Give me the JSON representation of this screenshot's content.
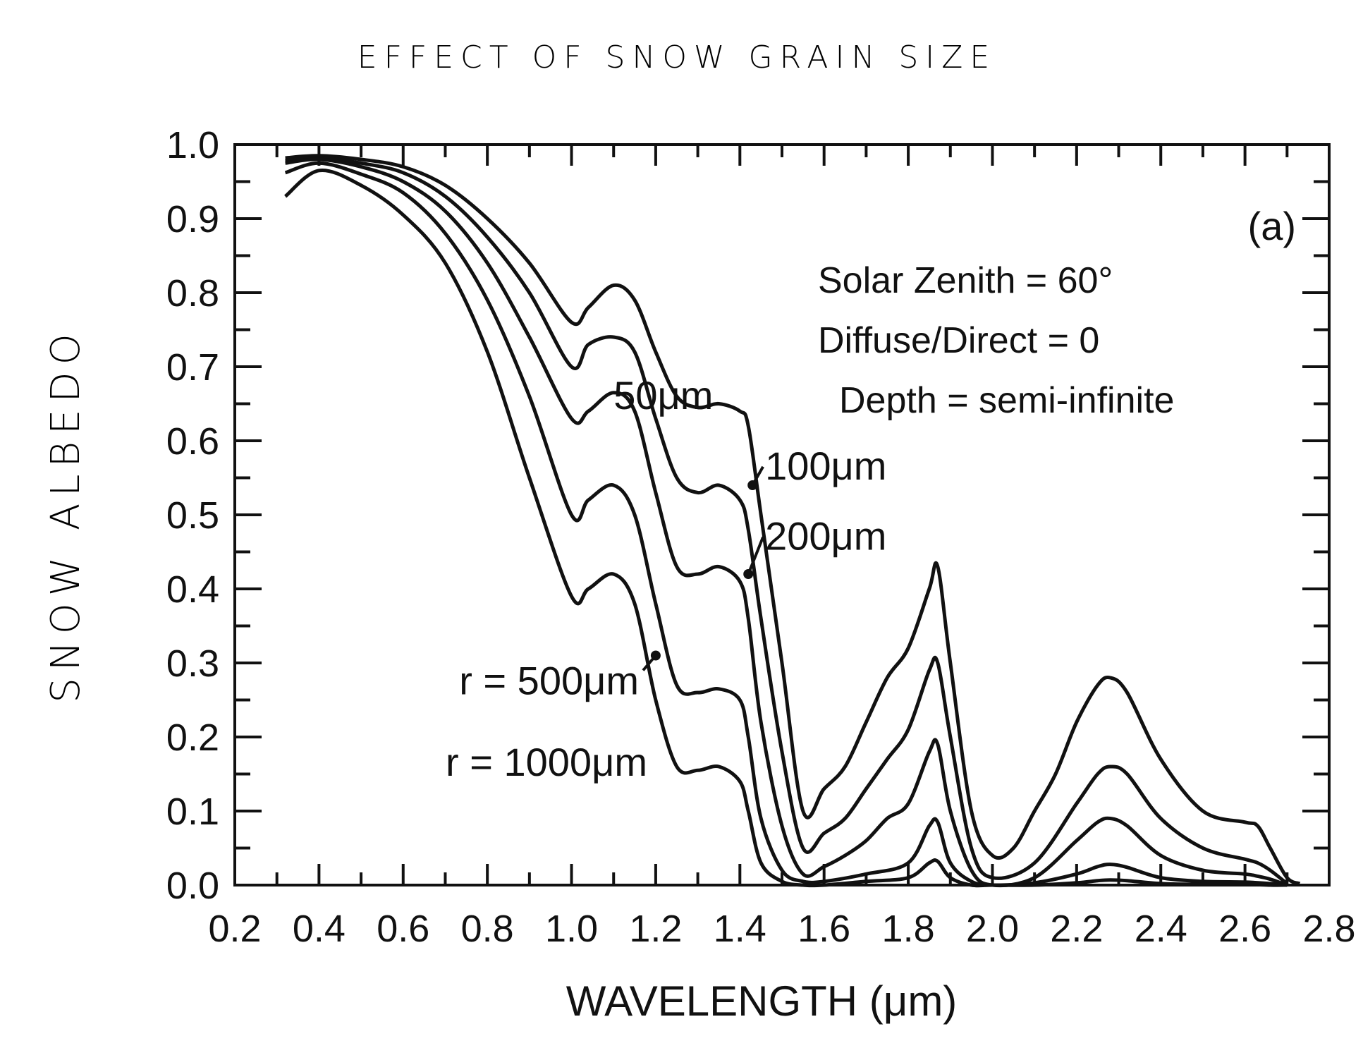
{
  "chart_data": {
    "type": "line",
    "title": "EFFECT OF SNOW GRAIN SIZE",
    "xlabel": "WAVELENGTH (μm)",
    "ylabel": "SNOW ALBEDO",
    "panel_label": "(a)",
    "xlim": [
      0.2,
      2.8
    ],
    "ylim": [
      0.0,
      1.0
    ],
    "x_ticks": [
      "0.2",
      "0.4",
      "0.6",
      "0.8",
      "1.0",
      "1.2",
      "1.4",
      "1.6",
      "1.8",
      "2.0",
      "2.2",
      "2.4",
      "2.6",
      "2.8"
    ],
    "y_ticks": [
      "0.0",
      "0.1",
      "0.2",
      "0.3",
      "0.4",
      "0.5",
      "0.6",
      "0.7",
      "0.8",
      "0.9",
      "1.0"
    ],
    "annotations": [
      "Solar Zenith = 60°",
      "Diffuse/Direct = 0",
      "Depth = semi-infinite"
    ],
    "grid": false,
    "series": [
      {
        "name": "50μm",
        "x": [
          0.32,
          0.4,
          0.5,
          0.6,
          0.7,
          0.8,
          0.9,
          1.0,
          1.04,
          1.1,
          1.15,
          1.2,
          1.25,
          1.3,
          1.35,
          1.4,
          1.42,
          1.45,
          1.5,
          1.55,
          1.6,
          1.65,
          1.7,
          1.75,
          1.8,
          1.85,
          1.87,
          1.9,
          1.95,
          2.0,
          2.05,
          2.1,
          2.15,
          2.2,
          2.25,
          2.28,
          2.32,
          2.4,
          2.5,
          2.6,
          2.63,
          2.66,
          2.7,
          2.73
        ],
        "y": [
          0.982,
          0.985,
          0.98,
          0.97,
          0.945,
          0.9,
          0.84,
          0.76,
          0.78,
          0.81,
          0.79,
          0.72,
          0.66,
          0.645,
          0.65,
          0.64,
          0.62,
          0.5,
          0.3,
          0.1,
          0.13,
          0.16,
          0.22,
          0.28,
          0.32,
          0.4,
          0.43,
          0.3,
          0.1,
          0.04,
          0.05,
          0.1,
          0.15,
          0.22,
          0.27,
          0.28,
          0.26,
          0.17,
          0.1,
          0.085,
          0.08,
          0.05,
          0.01,
          0.002
        ]
      },
      {
        "name": "100μm",
        "x": [
          0.32,
          0.4,
          0.5,
          0.6,
          0.7,
          0.8,
          0.9,
          1.0,
          1.04,
          1.1,
          1.15,
          1.2,
          1.25,
          1.3,
          1.35,
          1.4,
          1.42,
          1.45,
          1.5,
          1.55,
          1.6,
          1.65,
          1.7,
          1.75,
          1.8,
          1.85,
          1.87,
          1.9,
          1.95,
          2.0,
          2.1,
          2.2,
          2.25,
          2.28,
          2.32,
          2.4,
          2.5,
          2.6,
          2.63,
          2.66,
          2.7
        ],
        "y": [
          0.978,
          0.982,
          0.975,
          0.962,
          0.93,
          0.875,
          0.8,
          0.7,
          0.73,
          0.74,
          0.72,
          0.63,
          0.55,
          0.53,
          0.54,
          0.52,
          0.48,
          0.36,
          0.18,
          0.05,
          0.07,
          0.09,
          0.13,
          0.17,
          0.21,
          0.29,
          0.3,
          0.2,
          0.05,
          0.01,
          0.03,
          0.11,
          0.15,
          0.16,
          0.15,
          0.09,
          0.05,
          0.035,
          0.03,
          0.02,
          0.002
        ]
      },
      {
        "name": "200μm",
        "x": [
          0.32,
          0.4,
          0.5,
          0.6,
          0.7,
          0.8,
          0.9,
          1.0,
          1.04,
          1.1,
          1.15,
          1.2,
          1.25,
          1.3,
          1.35,
          1.4,
          1.42,
          1.45,
          1.5,
          1.55,
          1.6,
          1.65,
          1.7,
          1.75,
          1.8,
          1.85,
          1.87,
          1.9,
          1.95,
          2.0,
          2.1,
          2.2,
          2.25,
          2.28,
          2.32,
          2.4,
          2.5,
          2.6,
          2.63,
          2.66,
          2.7
        ],
        "y": [
          0.975,
          0.98,
          0.97,
          0.95,
          0.91,
          0.84,
          0.74,
          0.63,
          0.64,
          0.665,
          0.64,
          0.53,
          0.43,
          0.42,
          0.43,
          0.41,
          0.36,
          0.22,
          0.08,
          0.015,
          0.025,
          0.04,
          0.06,
          0.09,
          0.11,
          0.18,
          0.19,
          0.1,
          0.02,
          0.0,
          0.01,
          0.06,
          0.085,
          0.09,
          0.08,
          0.04,
          0.02,
          0.015,
          0.012,
          0.008,
          0.0
        ]
      },
      {
        "name": "r = 500μm",
        "x": [
          0.32,
          0.4,
          0.5,
          0.6,
          0.7,
          0.8,
          0.9,
          1.0,
          1.04,
          1.1,
          1.15,
          1.2,
          1.25,
          1.3,
          1.35,
          1.4,
          1.42,
          1.45,
          1.5,
          1.55,
          1.6,
          1.7,
          1.8,
          1.85,
          1.87,
          1.9,
          1.95,
          2.0,
          2.1,
          2.2,
          2.25,
          2.28,
          2.32,
          2.4,
          2.5,
          2.6,
          2.66,
          2.7
        ],
        "y": [
          0.962,
          0.975,
          0.96,
          0.935,
          0.88,
          0.79,
          0.66,
          0.5,
          0.52,
          0.54,
          0.5,
          0.38,
          0.27,
          0.26,
          0.265,
          0.25,
          0.2,
          0.09,
          0.02,
          0.005,
          0.005,
          0.015,
          0.03,
          0.08,
          0.085,
          0.03,
          0.005,
          0.0,
          0.003,
          0.015,
          0.025,
          0.028,
          0.024,
          0.01,
          0.005,
          0.004,
          0.002,
          0.0
        ]
      },
      {
        "name": "r = 1000μm",
        "x": [
          0.32,
          0.4,
          0.5,
          0.6,
          0.7,
          0.8,
          0.9,
          1.0,
          1.04,
          1.1,
          1.15,
          1.2,
          1.25,
          1.3,
          1.35,
          1.4,
          1.42,
          1.45,
          1.5,
          1.55,
          1.6,
          1.7,
          1.8,
          1.85,
          1.87,
          1.9,
          1.95,
          2.0,
          2.1,
          2.2,
          2.25,
          2.28,
          2.32,
          2.4,
          2.5,
          2.6,
          2.66,
          2.7
        ],
        "y": [
          0.93,
          0.965,
          0.945,
          0.905,
          0.84,
          0.72,
          0.55,
          0.39,
          0.4,
          0.42,
          0.38,
          0.25,
          0.16,
          0.155,
          0.16,
          0.14,
          0.1,
          0.03,
          0.005,
          0.0,
          0.0,
          0.005,
          0.01,
          0.03,
          0.032,
          0.01,
          0.0,
          0.0,
          0.0,
          0.003,
          0.006,
          0.007,
          0.006,
          0.002,
          0.001,
          0.001,
          0.0,
          0.0
        ]
      }
    ]
  }
}
